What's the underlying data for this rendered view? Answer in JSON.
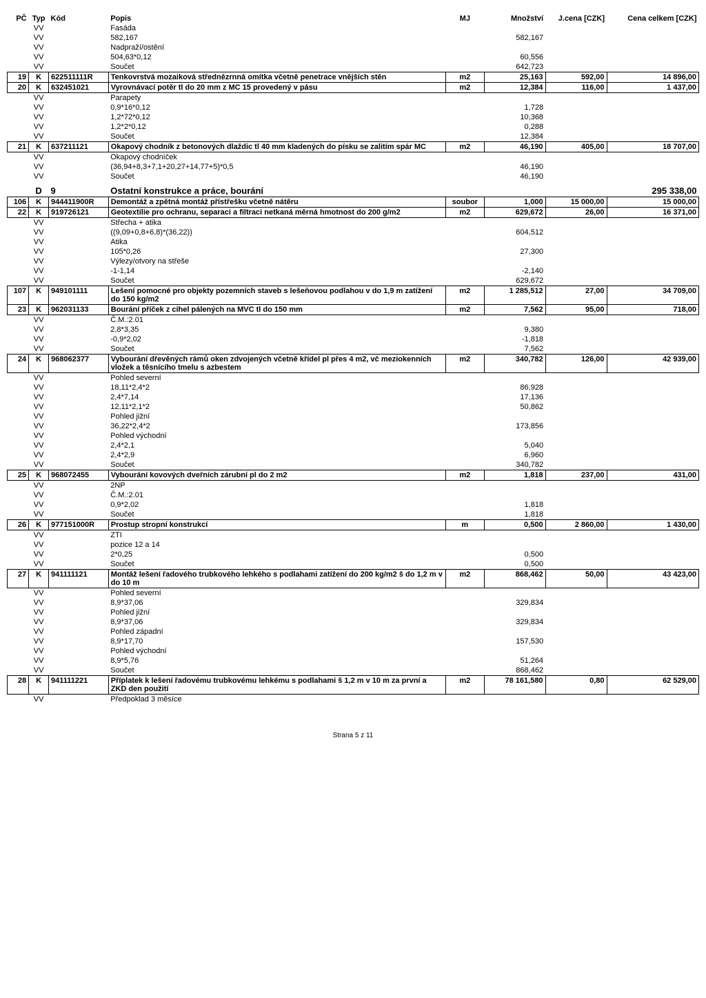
{
  "headers": {
    "pc": "PČ",
    "typ": "Typ",
    "kod": "Kód",
    "popis": "Popis",
    "mj": "MJ",
    "mnozstvi": "Množství",
    "jcena": "J.cena [CZK]",
    "celkem": "Cena celkem [CZK]"
  },
  "rows": [
    {
      "t": "vv",
      "popis": "Fasáda"
    },
    {
      "t": "vv",
      "popis": "582,167",
      "mn": "582,167"
    },
    {
      "t": "vv",
      "popis": "Nadpraží/ostění"
    },
    {
      "t": "vv",
      "popis": "504,63*0,12",
      "mn": "60,556"
    },
    {
      "t": "vv",
      "popis": "Součet",
      "mn": "642,723"
    },
    {
      "t": "item",
      "pc": "19",
      "typ": "K",
      "kod": "622511111R",
      "popis": "Tenkovrstvá mozaiková střednězrnná omítka včetně penetrace vnějších stěn",
      "mj": "m2",
      "mn": "25,163",
      "jc": "592,00",
      "cena": "14 896,00"
    },
    {
      "t": "item",
      "pc": "20",
      "typ": "K",
      "kod": "632451021",
      "popis": "Vyrovnávací potěr tl do 20 mm z MC 15 provedený v pásu",
      "mj": "m2",
      "mn": "12,384",
      "jc": "116,00",
      "cena": "1 437,00"
    },
    {
      "t": "vv",
      "popis": "Parapety"
    },
    {
      "t": "vv",
      "popis": "0,9*16*0,12",
      "mn": "1,728"
    },
    {
      "t": "vv",
      "popis": "1,2*72*0,12",
      "mn": "10,368"
    },
    {
      "t": "vv",
      "popis": "1,2*2*0,12",
      "mn": "0,288"
    },
    {
      "t": "vv",
      "popis": "Součet",
      "mn": "12,384"
    },
    {
      "t": "item",
      "pc": "21",
      "typ": "K",
      "kod": "637211121",
      "popis": "Okapový chodník z betonových dlaždic tl 40 mm kladených do písku se zalitím spár MC",
      "mj": "m2",
      "mn": "46,190",
      "jc": "405,00",
      "cena": "18 707,00"
    },
    {
      "t": "vv",
      "popis": "Okapový chodníček"
    },
    {
      "t": "vv",
      "popis": "(36,94+8,3+7,1+20,27+14,77+5)*0,5",
      "mn": "46,190"
    },
    {
      "t": "vv",
      "popis": "Součet",
      "mn": "46,190"
    },
    {
      "t": "section",
      "typ": "D",
      "kod": "9",
      "popis": "Ostatní konstrukce a práce, bourání",
      "cena": "295 338,00"
    },
    {
      "t": "item",
      "pc": "106",
      "typ": "K",
      "kod": "944411900R",
      "popis": "Demontáž a zpětná montáž přístřešku včetně nátěru",
      "mj": "soubor",
      "mn": "1,000",
      "jc": "15 000,00",
      "cena": "15 000,00"
    },
    {
      "t": "item",
      "pc": "22",
      "typ": "K",
      "kod": "919726121",
      "popis": "Geotextilie pro ochranu, separaci a filtraci netkaná měrná hmotnost do 200 g/m2",
      "mj": "m2",
      "mn": "629,672",
      "jc": "26,00",
      "cena": "16 371,00"
    },
    {
      "t": "vv",
      "popis": "Střecha + atika"
    },
    {
      "t": "vv",
      "popis": "((9,09+0,8+6,8)*(36,22))",
      "mn": "604,512"
    },
    {
      "t": "vv",
      "popis": "Atika"
    },
    {
      "t": "vv",
      "popis": "105*0,26",
      "mn": "27,300"
    },
    {
      "t": "vv",
      "popis": "Výlezy/otvory na střeše"
    },
    {
      "t": "vv",
      "popis": "-1-1,14",
      "mn": "-2,140"
    },
    {
      "t": "vv",
      "popis": "Součet",
      "mn": "629,672"
    },
    {
      "t": "item",
      "pc": "107",
      "typ": "K",
      "kod": "949101111",
      "popis": "Lešení pomocné pro objekty pozemních staveb s lešeňovou podlahou v do 1,9 m zatížení do 150 kg/m2",
      "mj": "m2",
      "mn": "1 285,512",
      "jc": "27,00",
      "cena": "34 709,00"
    },
    {
      "t": "item",
      "pc": "23",
      "typ": "K",
      "kod": "962031133",
      "popis": "Bourání příček z cihel pálených na MVC tl do 150 mm",
      "mj": "m2",
      "mn": "7,562",
      "jc": "95,00",
      "cena": "718,00"
    },
    {
      "t": "vv",
      "popis": "Č.M.:2.01"
    },
    {
      "t": "vv",
      "popis": "2,8*3,35",
      "mn": "9,380"
    },
    {
      "t": "vv",
      "popis": "-0,9*2,02",
      "mn": "-1,818"
    },
    {
      "t": "vv",
      "popis": "Součet",
      "mn": "7,562"
    },
    {
      "t": "item",
      "pc": "24",
      "typ": "K",
      "kod": "968062377",
      "popis": "Vybourání dřevěných rámů oken zdvojených včetně křídel pl přes 4 m2, vč meziokenních vložek a těsnícího tmelu s azbestem",
      "mj": "m2",
      "mn": "340,782",
      "jc": "126,00",
      "cena": "42 939,00"
    },
    {
      "t": "vv",
      "popis": "Pohled severní"
    },
    {
      "t": "vv",
      "popis": "18,11*2,4*2",
      "mn": "86,928"
    },
    {
      "t": "vv",
      "popis": "2,4*7,14",
      "mn": "17,136"
    },
    {
      "t": "vv",
      "popis": "12,11*2,1*2",
      "mn": "50,862"
    },
    {
      "t": "vv",
      "popis": "Pohled jižní"
    },
    {
      "t": "vv",
      "popis": "36,22*2,4*2",
      "mn": "173,856"
    },
    {
      "t": "vv",
      "popis": "Pohled východní"
    },
    {
      "t": "vv",
      "popis": "2,4*2,1",
      "mn": "5,040"
    },
    {
      "t": "vv",
      "popis": "2,4*2,9",
      "mn": "6,960"
    },
    {
      "t": "vv",
      "popis": "Součet",
      "mn": "340,782"
    },
    {
      "t": "item",
      "pc": "25",
      "typ": "K",
      "kod": "968072455",
      "popis": "Vybourání kovových dveřních zárubní pl do 2 m2",
      "mj": "m2",
      "mn": "1,818",
      "jc": "237,00",
      "cena": "431,00"
    },
    {
      "t": "vv",
      "popis": "2NP"
    },
    {
      "t": "vv",
      "popis": "Č.M.:2.01"
    },
    {
      "t": "vv",
      "popis": "0,9*2,02",
      "mn": "1,818"
    },
    {
      "t": "vv",
      "popis": "Součet",
      "mn": "1,818"
    },
    {
      "t": "item",
      "pc": "26",
      "typ": "K",
      "kod": "977151000R",
      "popis": "Prostup stropní konstrukcí",
      "mj": "m",
      "mn": "0,500",
      "jc": "2 860,00",
      "cena": "1 430,00"
    },
    {
      "t": "vv",
      "popis": "ZTI"
    },
    {
      "t": "vv",
      "popis": "pozice 12 a 14"
    },
    {
      "t": "vv",
      "popis": "2*0,25",
      "mn": "0,500"
    },
    {
      "t": "vv",
      "popis": "Součet",
      "mn": "0,500"
    },
    {
      "t": "item",
      "pc": "27",
      "typ": "K",
      "kod": "941111121",
      "popis": "Montáž lešení řadového trubkového lehkého s podlahami zatížení do 200 kg/m2 š do 1,2 m v do 10 m",
      "mj": "m2",
      "mn": "868,462",
      "jc": "50,00",
      "cena": "43 423,00"
    },
    {
      "t": "vv",
      "popis": "Pohled severní"
    },
    {
      "t": "vv",
      "popis": "8,9*37,06",
      "mn": "329,834"
    },
    {
      "t": "vv",
      "popis": "Pohled jižní"
    },
    {
      "t": "vv",
      "popis": "8,9*37,06",
      "mn": "329,834"
    },
    {
      "t": "vv",
      "popis": "Pohled západní"
    },
    {
      "t": "vv",
      "popis": "8,9*17,70",
      "mn": "157,530"
    },
    {
      "t": "vv",
      "popis": "Pohled východní"
    },
    {
      "t": "vv",
      "popis": "8,9*5,76",
      "mn": "51,264"
    },
    {
      "t": "vv",
      "popis": "Součet",
      "mn": "868,462"
    },
    {
      "t": "item",
      "pc": "28",
      "typ": "K",
      "kod": "941111221",
      "popis": "Příplatek k lešení řadovému trubkovému lehkému s podlahami š 1,2 m v 10 m za první a ZKD den použití",
      "mj": "m2",
      "mn": "78 161,580",
      "jc": "0,80",
      "cena": "62 529,00"
    },
    {
      "t": "vv",
      "popis": "Předpoklad 3 měsíce"
    }
  ],
  "footer": "Strana 5 z 11"
}
